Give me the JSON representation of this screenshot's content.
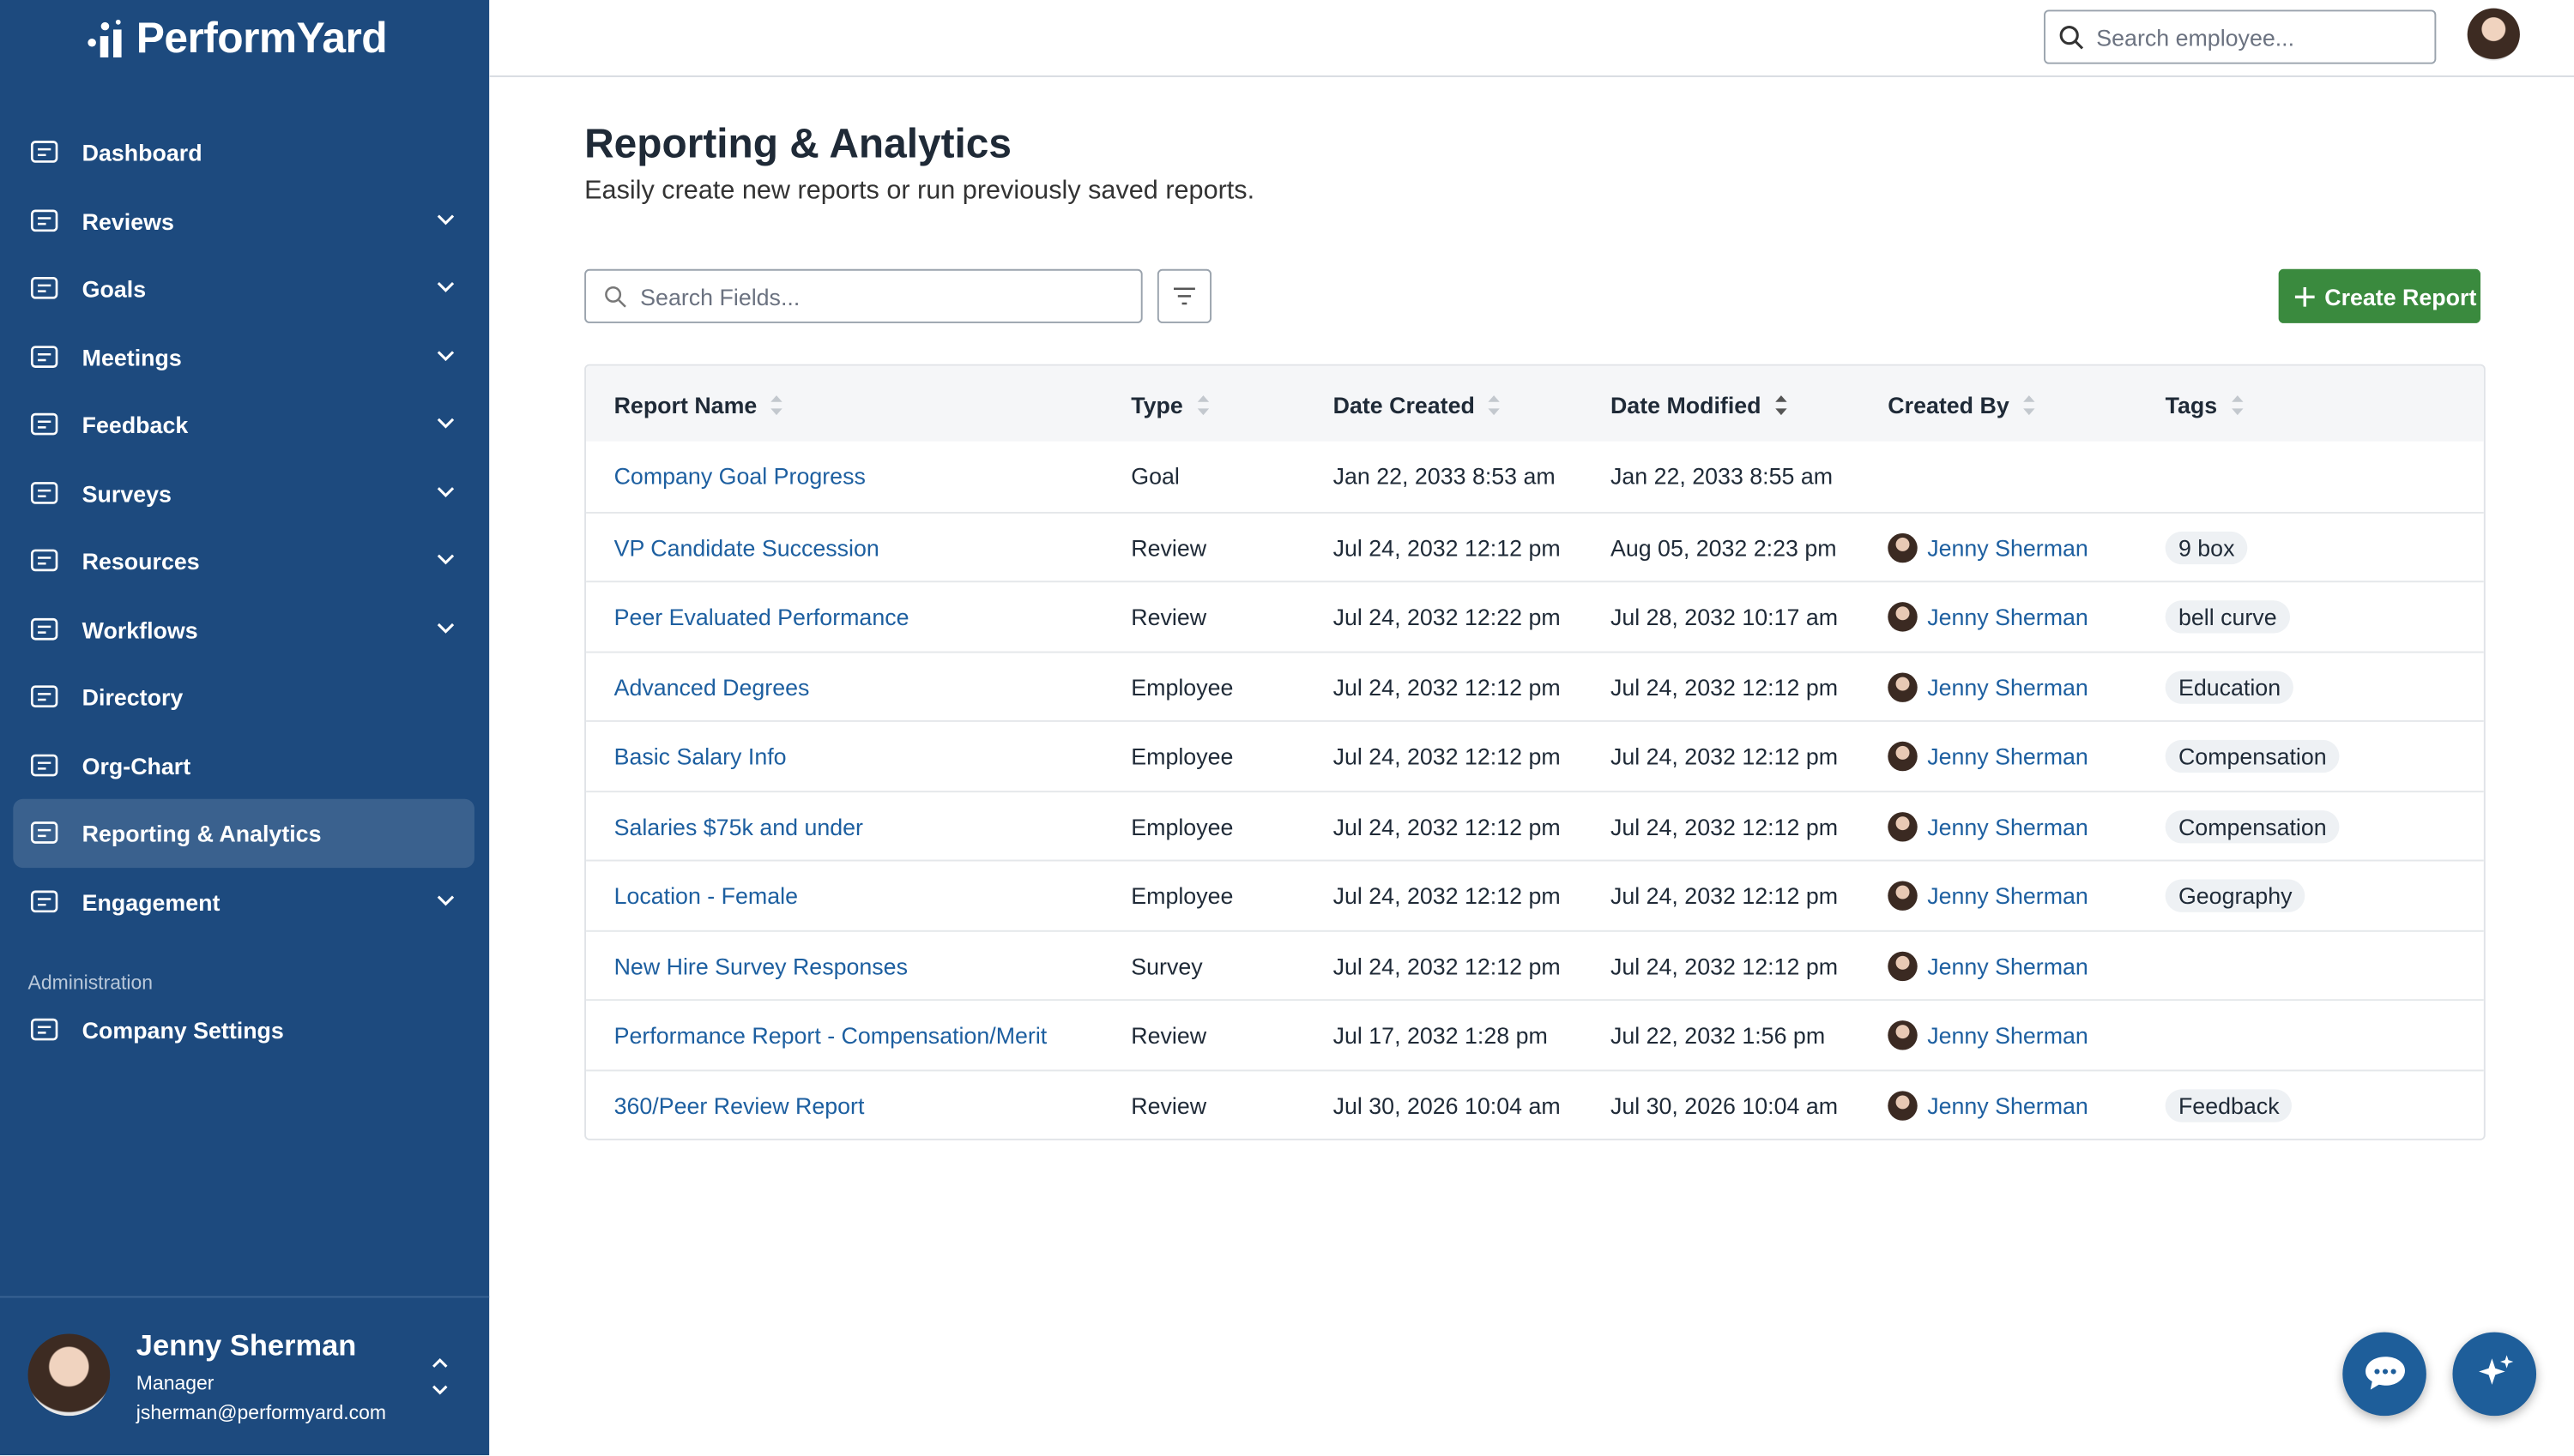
{
  "sidebar": {
    "logo": "PerformYard",
    "nav": [
      {
        "label": "Dashboard",
        "expandable": false
      },
      {
        "label": "Reviews",
        "expandable": true
      },
      {
        "label": "Goals",
        "expandable": true
      },
      {
        "label": "Meetings",
        "expandable": true
      },
      {
        "label": "Feedback",
        "expandable": true
      },
      {
        "label": "Surveys",
        "expandable": true
      },
      {
        "label": "Resources",
        "expandable": true
      },
      {
        "label": "Workflows",
        "expandable": true
      },
      {
        "label": "Directory",
        "expandable": false
      },
      {
        "label": "Org-Chart",
        "expandable": false
      },
      {
        "label": "Reporting & Analytics",
        "expandable": false,
        "active": true
      },
      {
        "label": "Engagement",
        "expandable": true
      }
    ],
    "admin_heading": "Administration",
    "admin_nav": [
      {
        "label": "Company Settings",
        "expandable": false
      }
    ],
    "user": {
      "name": "Jenny Sherman",
      "role": "Manager",
      "email": "jsherman@performyard.com"
    }
  },
  "topbar": {
    "search_placeholder": "Search employee..."
  },
  "page": {
    "title": "Reporting & Analytics",
    "subtitle": "Easily create new reports or run previously saved reports.",
    "search_placeholder": "Search Fields...",
    "create_button": "Create Report"
  },
  "table": {
    "columns": [
      {
        "label": "Report Name"
      },
      {
        "label": "Type"
      },
      {
        "label": "Date Created"
      },
      {
        "label": "Date Modified",
        "sorted": true
      },
      {
        "label": "Created By"
      },
      {
        "label": "Tags"
      }
    ],
    "rows": [
      {
        "name": "Company Goal Progress",
        "type": "Goal",
        "created": "Jan 22, 2033 8:53 am",
        "modified": "Jan 22, 2033 8:55 am"
      },
      {
        "name": "VP Candidate Succession",
        "type": "Review",
        "created": "Jul 24, 2032 12:12 pm",
        "modified": "Aug 05, 2032 2:23 pm",
        "created_by": "Jenny Sherman",
        "tag": "9 box"
      },
      {
        "name": "Peer Evaluated Performance",
        "type": "Review",
        "created": "Jul 24, 2032 12:22 pm",
        "modified": "Jul 28, 2032 10:17 am",
        "created_by": "Jenny Sherman",
        "tag": "bell curve"
      },
      {
        "name": "Advanced Degrees",
        "type": "Employee",
        "created": "Jul 24, 2032 12:12 pm",
        "modified": "Jul 24, 2032 12:12 pm",
        "created_by": "Jenny Sherman",
        "tag": "Education"
      },
      {
        "name": "Basic Salary Info",
        "type": "Employee",
        "created": "Jul 24, 2032 12:12 pm",
        "modified": "Jul 24, 2032 12:12 pm",
        "created_by": "Jenny Sherman",
        "tag": "Compensation"
      },
      {
        "name": "Salaries $75k and under",
        "type": "Employee",
        "created": "Jul 24, 2032 12:12 pm",
        "modified": "Jul 24, 2032 12:12 pm",
        "created_by": "Jenny Sherman",
        "tag": "Compensation"
      },
      {
        "name": "Location - Female",
        "type": "Employee",
        "created": "Jul 24, 2032 12:12 pm",
        "modified": "Jul 24, 2032 12:12 pm",
        "created_by": "Jenny Sherman",
        "tag": "Geography"
      },
      {
        "name": "New Hire Survey Responses",
        "type": "Survey",
        "created": "Jul 24, 2032 12:12 pm",
        "modified": "Jul 24, 2032 12:12 pm",
        "created_by": "Jenny Sherman"
      },
      {
        "name": "Performance Report - Compensation/Merit",
        "type": "Review",
        "created": "Jul 17, 2032 1:28 pm",
        "modified": "Jul 22, 2032 1:56 pm",
        "created_by": "Jenny Sherman"
      },
      {
        "name": "360/Peer Review Report",
        "type": "Review",
        "created": "Jul 30, 2026 10:04 am",
        "modified": "Jul 30, 2026 10:04 am",
        "created_by": "Jenny Sherman",
        "tag": "Feedback"
      }
    ]
  }
}
